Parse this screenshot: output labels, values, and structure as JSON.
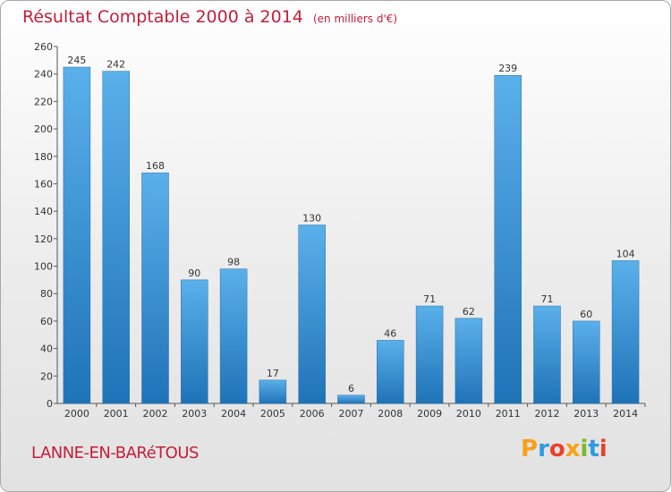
{
  "title": "Résultat Comptable 2000 à 2014",
  "unit": "(en milliers d'€)",
  "commune": "LANNE-EN-BARéTOUS",
  "brand": {
    "letters": [
      "P",
      "r",
      "o",
      "x",
      "i",
      "t",
      "i"
    ],
    "colors": [
      "#f7a11a",
      "#2e9be0",
      "#e8412c",
      "#f7a11a",
      "#7cb928",
      "#2e9be0",
      "#e8412c"
    ]
  },
  "colors": {
    "bar_light": "#5ab0ea",
    "bar_dark": "#1f73b8",
    "title": "#c41e3a"
  },
  "chart_data": {
    "type": "bar",
    "categories": [
      "2000",
      "2001",
      "2002",
      "2003",
      "2004",
      "2005",
      "2006",
      "2007",
      "2008",
      "2009",
      "2010",
      "2011",
      "2012",
      "2013",
      "2014"
    ],
    "values": [
      245,
      242,
      168,
      90,
      98,
      17,
      130,
      6,
      46,
      71,
      62,
      239,
      71,
      60,
      104
    ],
    "ylim": [
      0,
      260
    ],
    "yticks": [
      0,
      20,
      40,
      60,
      80,
      100,
      120,
      140,
      160,
      180,
      200,
      220,
      240,
      260
    ],
    "grid": false,
    "legend": "none"
  }
}
